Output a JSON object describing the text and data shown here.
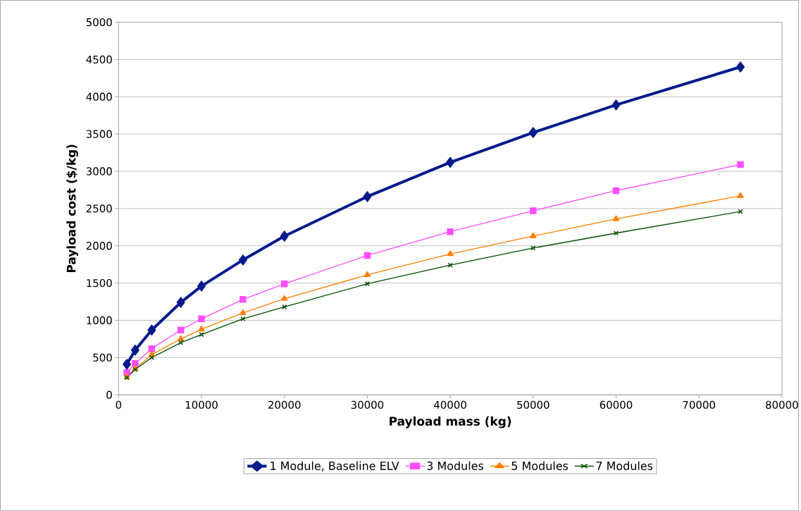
{
  "chart_data": {
    "type": "line",
    "xlabel": "Payload mass (kg)",
    "ylabel": "Payload cost ($/kg)",
    "x": [
      1000,
      2000,
      4000,
      7500,
      10000,
      15000,
      20000,
      30000,
      40000,
      50000,
      60000,
      75000
    ],
    "series": [
      {
        "name": "1 Module, Baseline ELV",
        "color": "#001a8c",
        "marker": "diamond",
        "values": [
          410,
          600,
          870,
          1240,
          1460,
          1810,
          2130,
          2660,
          3120,
          3520,
          3890,
          4400
        ]
      },
      {
        "name": "3 Modules",
        "color": "#ff4dff",
        "marker": "square",
        "values": [
          300,
          420,
          620,
          870,
          1020,
          1280,
          1490,
          1870,
          2190,
          2470,
          2740,
          3090
        ]
      },
      {
        "name": "5 Modules",
        "color": "#ff7f00",
        "marker": "triangle",
        "values": [
          240,
          350,
          540,
          750,
          880,
          1100,
          1290,
          1610,
          1890,
          2130,
          2360,
          2670
        ]
      },
      {
        "name": "7 Modules",
        "color": "#004d00",
        "marker": "cross",
        "values": [
          230,
          340,
          500,
          700,
          810,
          1020,
          1180,
          1490,
          1740,
          1970,
          2170,
          2460
        ]
      }
    ],
    "xlim": [
      0,
      80000
    ],
    "xticks": [
      0,
      10000,
      20000,
      30000,
      40000,
      50000,
      60000,
      70000,
      80000
    ],
    "ylim": [
      0,
      5000
    ],
    "yticks": [
      0,
      500,
      1000,
      1500,
      2000,
      2500,
      3000,
      3500,
      4000,
      4500,
      5000
    ],
    "grid": "y",
    "legend": "bottom"
  }
}
